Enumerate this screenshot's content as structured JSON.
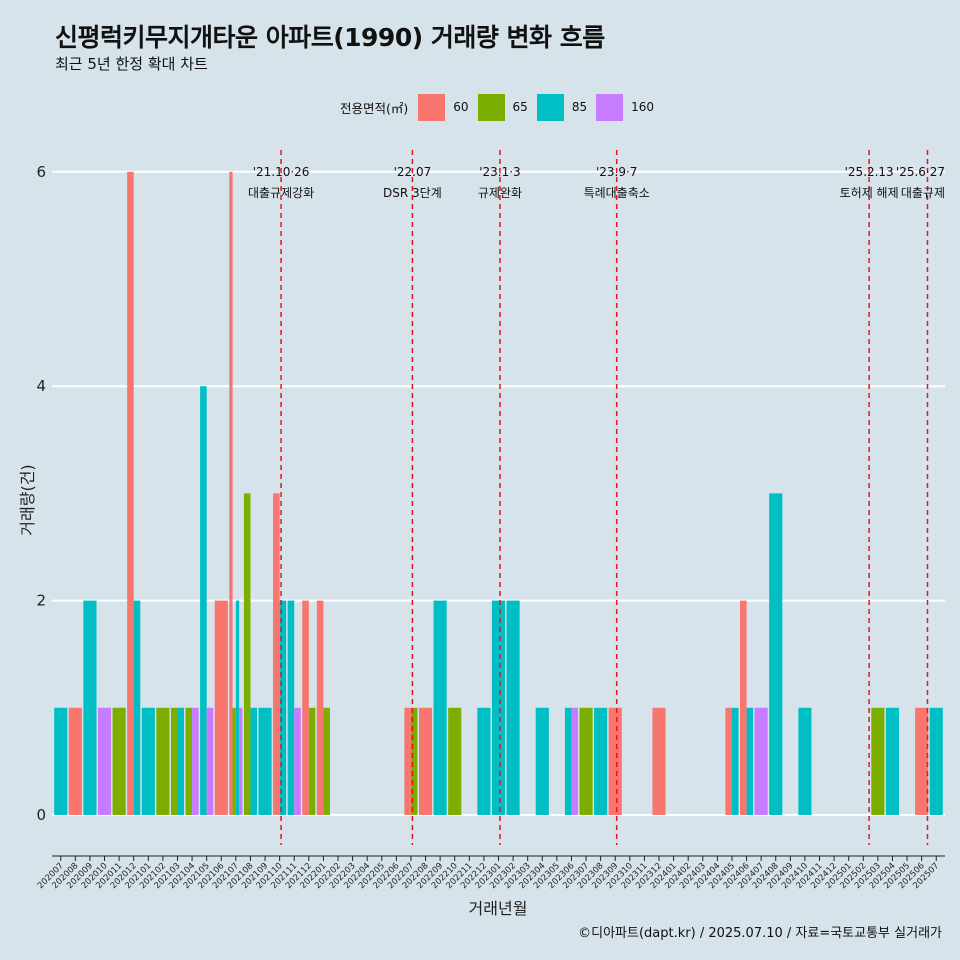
{
  "title": "신평럭키무지개타운 아파트(1990) 거래량 변화 흐름",
  "subtitle": "최근 5년 한정 확대 차트",
  "caption": "©디아파트(dapt.kr) / 2025.07.10 / 자료=국토교통부 실거래가",
  "legend": {
    "title": "전용면적(㎡)",
    "items": [
      {
        "label": "60",
        "color": "#f8766d"
      },
      {
        "label": "65",
        "color": "#7cae00"
      },
      {
        "label": "85",
        "color": "#00bfc4"
      },
      {
        "label": "160",
        "color": "#c77cff"
      }
    ]
  },
  "chart_data": {
    "type": "bar",
    "xlabel": "거래년월",
    "ylabel": "거래량(건)",
    "ylim": [
      -0.28,
      6.25
    ],
    "yticks": [
      0,
      2,
      4,
      6
    ],
    "categories": [
      "202007",
      "202008",
      "202009",
      "202010",
      "202011",
      "202012",
      "202101",
      "202102",
      "202103",
      "202104",
      "202105",
      "202106",
      "202107",
      "202108",
      "202109",
      "202110",
      "202111",
      "202112",
      "202201",
      "202202",
      "202203",
      "202204",
      "202205",
      "202206",
      "202207",
      "202208",
      "202209",
      "202210",
      "202211",
      "202212",
      "202301",
      "202302",
      "202303",
      "202304",
      "202305",
      "202306",
      "202307",
      "202308",
      "202309",
      "202310",
      "202311",
      "202312",
      "202401",
      "202402",
      "202403",
      "202404",
      "202405",
      "202406",
      "202407",
      "202408",
      "202409",
      "202410",
      "202411",
      "202412",
      "202501",
      "202502",
      "202503",
      "202504",
      "202505",
      "202506",
      "202507"
    ],
    "series": [
      {
        "name": "60",
        "color": "#f8766d",
        "values": [
          0,
          1,
          0,
          0,
          0,
          6,
          0,
          0,
          0,
          0,
          0,
          2,
          6,
          0,
          0,
          3,
          0,
          2,
          2,
          0,
          0,
          0,
          0,
          0,
          1,
          1,
          0,
          0,
          0,
          0,
          0,
          0,
          0,
          0,
          0,
          0,
          0,
          0,
          1,
          0,
          0,
          1,
          0,
          0,
          0,
          0,
          1,
          2,
          0,
          0,
          0,
          0,
          0,
          0,
          0,
          0,
          0,
          0,
          0,
          1,
          0
        ]
      },
      {
        "name": "65",
        "color": "#7cae00",
        "values": [
          0,
          0,
          0,
          0,
          1,
          0,
          0,
          1,
          1,
          1,
          0,
          0,
          1,
          3,
          0,
          0,
          0,
          1,
          1,
          0,
          0,
          0,
          0,
          0,
          1,
          0,
          0,
          1,
          0,
          0,
          0,
          0,
          0,
          0,
          0,
          0,
          1,
          0,
          0,
          0,
          0,
          0,
          0,
          0,
          0,
          0,
          0,
          0,
          0,
          0,
          0,
          0,
          0,
          0,
          0,
          0,
          1,
          0,
          0,
          0,
          0
        ]
      },
      {
        "name": "85",
        "color": "#00bfc4",
        "values": [
          1,
          0,
          2,
          0,
          0,
          2,
          1,
          0,
          1,
          0,
          4,
          0,
          2,
          1,
          1,
          2,
          2,
          0,
          0,
          0,
          0,
          0,
          0,
          0,
          0,
          0,
          2,
          0,
          0,
          1,
          2,
          2,
          0,
          1,
          0,
          1,
          0,
          1,
          0,
          0,
          0,
          0,
          0,
          0,
          0,
          0,
          1,
          1,
          0,
          3,
          0,
          1,
          0,
          0,
          0,
          0,
          0,
          1,
          0,
          0,
          1
        ]
      },
      {
        "name": "160",
        "color": "#c77cff",
        "values": [
          0,
          0,
          0,
          1,
          0,
          0,
          0,
          0,
          0,
          1,
          1,
          0,
          1,
          0,
          0,
          0,
          1,
          0,
          0,
          0,
          0,
          0,
          0,
          0,
          0,
          0,
          0,
          0,
          0,
          0,
          0,
          0,
          0,
          0,
          0,
          1,
          0,
          0,
          0,
          0,
          0,
          0,
          0,
          0,
          0,
          0,
          0,
          0,
          1,
          0,
          0,
          0,
          0,
          0,
          0,
          0,
          0,
          0,
          0,
          0,
          0
        ]
      }
    ],
    "events": [
      {
        "date": "'21.10·26",
        "label": "대출규제강화",
        "x": 15.1
      },
      {
        "date": "'22.07",
        "label": "DSR 3단계",
        "x": 24.1
      },
      {
        "date": "'23.1·3",
        "label": "규제완화",
        "x": 30.1
      },
      {
        "date": "'23.9·7",
        "label": "특례대출축소",
        "x": 38.1
      },
      {
        "date": "'25.2.13",
        "label": "토허제 해제",
        "x": 55.4
      },
      {
        "date": "'25.6·27",
        "label": "대출규제",
        "x": 59.4
      }
    ]
  }
}
